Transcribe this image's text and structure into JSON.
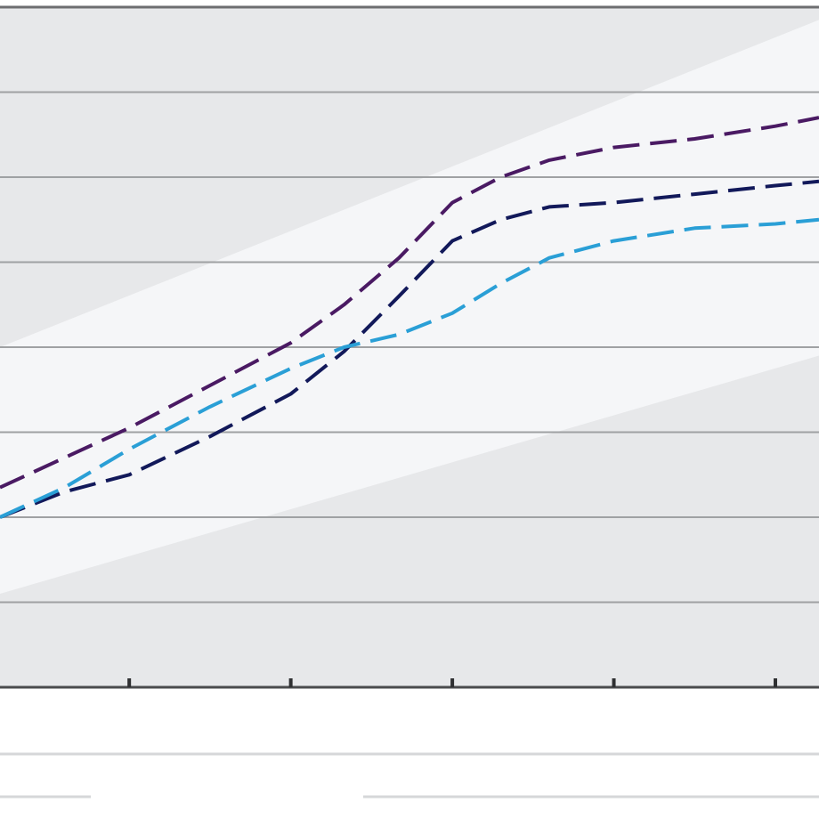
{
  "chart_data": {
    "type": "line",
    "title": "",
    "xlabel": "",
    "ylabel": "",
    "x": [
      0,
      1,
      2,
      3,
      4
    ],
    "xlim": [
      -0.8,
      4.27
    ],
    "ylim": [
      0,
      8
    ],
    "grid": true,
    "legend": "none",
    "background_band": {
      "color": "#f5f6f8",
      "lower": [
        {
          "x": -0.8,
          "y": 1.1
        },
        {
          "x": 4.27,
          "y": 3.9
        }
      ],
      "upper": [
        {
          "x": -0.8,
          "y": 4.0
        },
        {
          "x": 4.27,
          "y": 7.85
        }
      ]
    },
    "series": [
      {
        "color": "#4a1a63",
        "x": [
          -0.8,
          -0.4,
          0.0,
          0.5,
          1.0,
          1.33,
          1.67,
          2.0,
          2.3,
          2.6,
          3.0,
          3.5,
          4.0,
          4.27
        ],
        "y": [
          2.35,
          2.7,
          3.05,
          3.55,
          4.05,
          4.5,
          5.05,
          5.7,
          6.0,
          6.2,
          6.35,
          6.45,
          6.6,
          6.7
        ]
      },
      {
        "color": "#12195a",
        "x": [
          -0.8,
          -0.4,
          0.0,
          0.5,
          1.0,
          1.33,
          1.67,
          2.0,
          2.3,
          2.6,
          3.0,
          3.5,
          4.0,
          4.27
        ],
        "y": [
          2.0,
          2.3,
          2.5,
          2.95,
          3.45,
          3.95,
          4.6,
          5.25,
          5.5,
          5.65,
          5.7,
          5.8,
          5.9,
          5.95
        ]
      },
      {
        "color": "#2a9fd6",
        "x": [
          -0.8,
          -0.4,
          0.0,
          0.5,
          1.0,
          1.33,
          1.67,
          2.0,
          2.3,
          2.6,
          3.0,
          3.5,
          4.0,
          4.27
        ],
        "y": [
          2.0,
          2.35,
          2.8,
          3.3,
          3.75,
          4.0,
          4.15,
          4.4,
          4.75,
          5.05,
          5.25,
          5.4,
          5.45,
          5.5
        ]
      }
    ]
  }
}
